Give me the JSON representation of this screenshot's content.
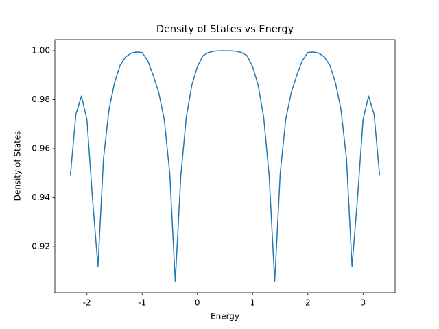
{
  "chart_data": {
    "type": "line",
    "title": "Density of States vs Energy",
    "xlabel": "Energy",
    "ylabel": "Density of States",
    "x": [
      -2.3,
      -2.2,
      -2.1,
      -2.0,
      -1.9,
      -1.8,
      -1.7,
      -1.6,
      -1.5,
      -1.4,
      -1.3,
      -1.2,
      -1.1,
      -1.0,
      -0.9,
      -0.8,
      -0.7,
      -0.6,
      -0.5,
      -0.4,
      -0.3,
      -0.2,
      -0.1,
      0.0,
      0.1,
      0.2,
      0.3,
      0.4,
      0.5,
      0.6,
      0.7,
      0.8,
      0.9,
      1.0,
      1.1,
      1.2,
      1.3,
      1.4,
      1.5,
      1.6,
      1.7,
      1.8,
      1.9,
      2.0,
      2.1,
      2.2,
      2.3,
      2.4,
      2.5,
      2.6,
      2.7,
      2.8,
      2.9,
      3.0,
      3.1,
      3.2,
      3.3
    ],
    "series": [
      {
        "color": "#1f77b4",
        "values": [
          0.949,
          0.974,
          0.9815,
          0.972,
          0.94,
          0.912,
          0.956,
          0.976,
          0.987,
          0.994,
          0.9975,
          0.999,
          0.9995,
          0.9993,
          0.996,
          0.99,
          0.983,
          0.972,
          0.95,
          0.9058,
          0.949,
          0.973,
          0.986,
          0.9935,
          0.998,
          0.9993,
          0.9998,
          0.99998,
          1.0,
          0.99998,
          0.9998,
          0.9993,
          0.998,
          0.9935,
          0.986,
          0.973,
          0.949,
          0.9058,
          0.95,
          0.972,
          0.983,
          0.99,
          0.996,
          0.9993,
          0.9995,
          0.999,
          0.9975,
          0.994,
          0.987,
          0.976,
          0.956,
          0.912,
          0.94,
          0.972,
          0.9815,
          0.974,
          0.949
        ]
      }
    ],
    "xlim": [
      -2.58,
      3.58
    ],
    "ylim": [
      0.9013,
      1.0045
    ],
    "xticks": [
      -2,
      -1,
      0,
      1,
      2,
      3
    ],
    "yticks": [
      0.92,
      0.94,
      0.96,
      0.98,
      {
        "value": 1,
        "label": "1.00"
      }
    ],
    "grid": false
  }
}
